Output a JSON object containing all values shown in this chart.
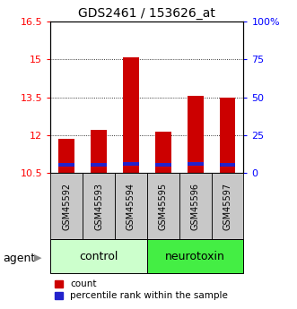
{
  "title": "GDS2461 / 153626_at",
  "categories": [
    "GSM45592",
    "GSM45593",
    "GSM45594",
    "GSM45595",
    "GSM45596",
    "GSM45597"
  ],
  "red_values": [
    11.85,
    12.2,
    15.07,
    12.15,
    13.55,
    13.48
  ],
  "blue_values": [
    10.82,
    10.82,
    10.87,
    10.82,
    10.87,
    10.82
  ],
  "ymin": 10.5,
  "ymax": 16.5,
  "yticks_left": [
    10.5,
    12.0,
    13.5,
    15.0,
    16.5
  ],
  "yticks_right_labels": [
    "0",
    "25",
    "50",
    "75",
    "100%"
  ],
  "bar_color": "#cc0000",
  "blue_color": "#2222cc",
  "control_color": "#ccffcc",
  "neurotoxin_color": "#44ee44",
  "sample_bg_color": "#c8c8c8",
  "legend_count_label": "count",
  "legend_pct_label": "percentile rank within the sample",
  "bar_width": 0.5
}
